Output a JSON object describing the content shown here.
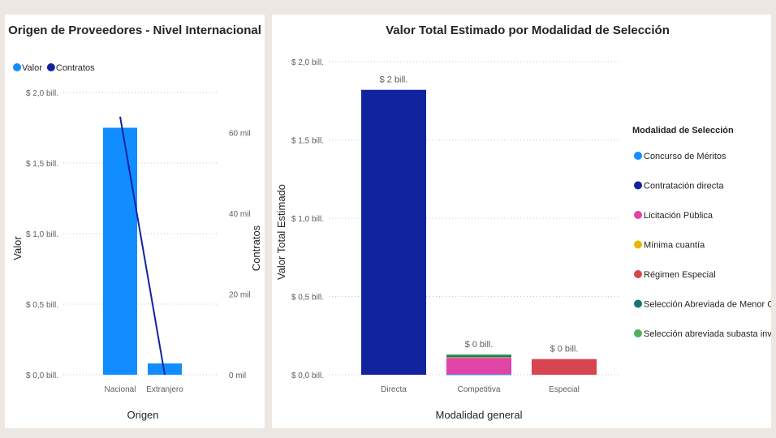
{
  "chart_data": [
    {
      "type": "bar",
      "title": "Origen de Proveedores - Nivel Internacional",
      "xlabel": "Origen",
      "ylabel": "Valor",
      "y2label": "Contratos",
      "categories": [
        "Nacional",
        "Extranjero"
      ],
      "series": [
        {
          "name": "Valor",
          "values": [
            1.75,
            0.08
          ],
          "color": "#118dff",
          "axis": "left",
          "kind": "bar"
        },
        {
          "name": "Contratos",
          "values": [
            64000,
            0
          ],
          "color": "#12239e",
          "axis": "right",
          "kind": "line"
        }
      ],
      "ylim": [
        0,
        2.0
      ],
      "y2lim": [
        0,
        70000
      ],
      "yticks": [
        0,
        0.5,
        1.0,
        1.5,
        2.0
      ],
      "yticklabels": [
        "$ 0,0 bill.",
        "$ 0,5 bill.",
        "$ 1,0 bill.",
        "$ 1,5 bill.",
        "$ 2,0 bill."
      ],
      "y2ticks": [
        0,
        20000,
        40000,
        60000
      ],
      "y2ticklabels": [
        "0 mil",
        "20 mil",
        "40 mil",
        "60 mil"
      ],
      "legend": {
        "position": "top-left",
        "items": [
          {
            "name": "Valor",
            "color": "#118dff"
          },
          {
            "name": "Contratos",
            "color": "#12239e"
          }
        ]
      },
      "grid": true
    },
    {
      "type": "bar",
      "stacked": true,
      "title": "Valor Total Estimado por Modalidad de Selección",
      "xlabel": "Modalidad general",
      "ylabel": "Valor Total Estimado",
      "categories": [
        "Directa",
        "Competitiva",
        "Especial"
      ],
      "series": [
        {
          "name": "Concurso de Méritos",
          "values": [
            0,
            0.003,
            0
          ],
          "color": "#118dff"
        },
        {
          "name": "Contratación directa",
          "values": [
            1.82,
            0,
            0
          ],
          "color": "#12239e"
        },
        {
          "name": "Licitación Pública",
          "values": [
            0,
            0.105,
            0
          ],
          "color": "#e044a7"
        },
        {
          "name": "Mínima cuantía",
          "values": [
            0,
            0.004,
            0
          ],
          "color": "#e6b800"
        },
        {
          "name": "Régimen Especial",
          "values": [
            0,
            0,
            0.1
          ],
          "color": "#d64550"
        },
        {
          "name": "Selección Abreviada de Menor Cuantía",
          "values": [
            0,
            0.012,
            0
          ],
          "color": "#197278"
        },
        {
          "name": "Selección abreviada subasta inversa",
          "values": [
            0,
            0.006,
            0
          ],
          "color": "#4fb15a"
        }
      ],
      "data_labels": [
        "$ 2 bill.",
        "$ 0 bill.",
        "$ 0 bill."
      ],
      "ylim": [
        0,
        2.0
      ],
      "yticks": [
        0,
        0.5,
        1.0,
        1.5,
        2.0
      ],
      "yticklabels": [
        "$ 0,0 bill.",
        "$ 0,5 bill.",
        "$ 1,0 bill.",
        "$ 1,5 bill.",
        "$ 2,0 bill."
      ],
      "legend": {
        "position": "right",
        "title": "Modalidad de Selección"
      },
      "grid": true
    }
  ]
}
